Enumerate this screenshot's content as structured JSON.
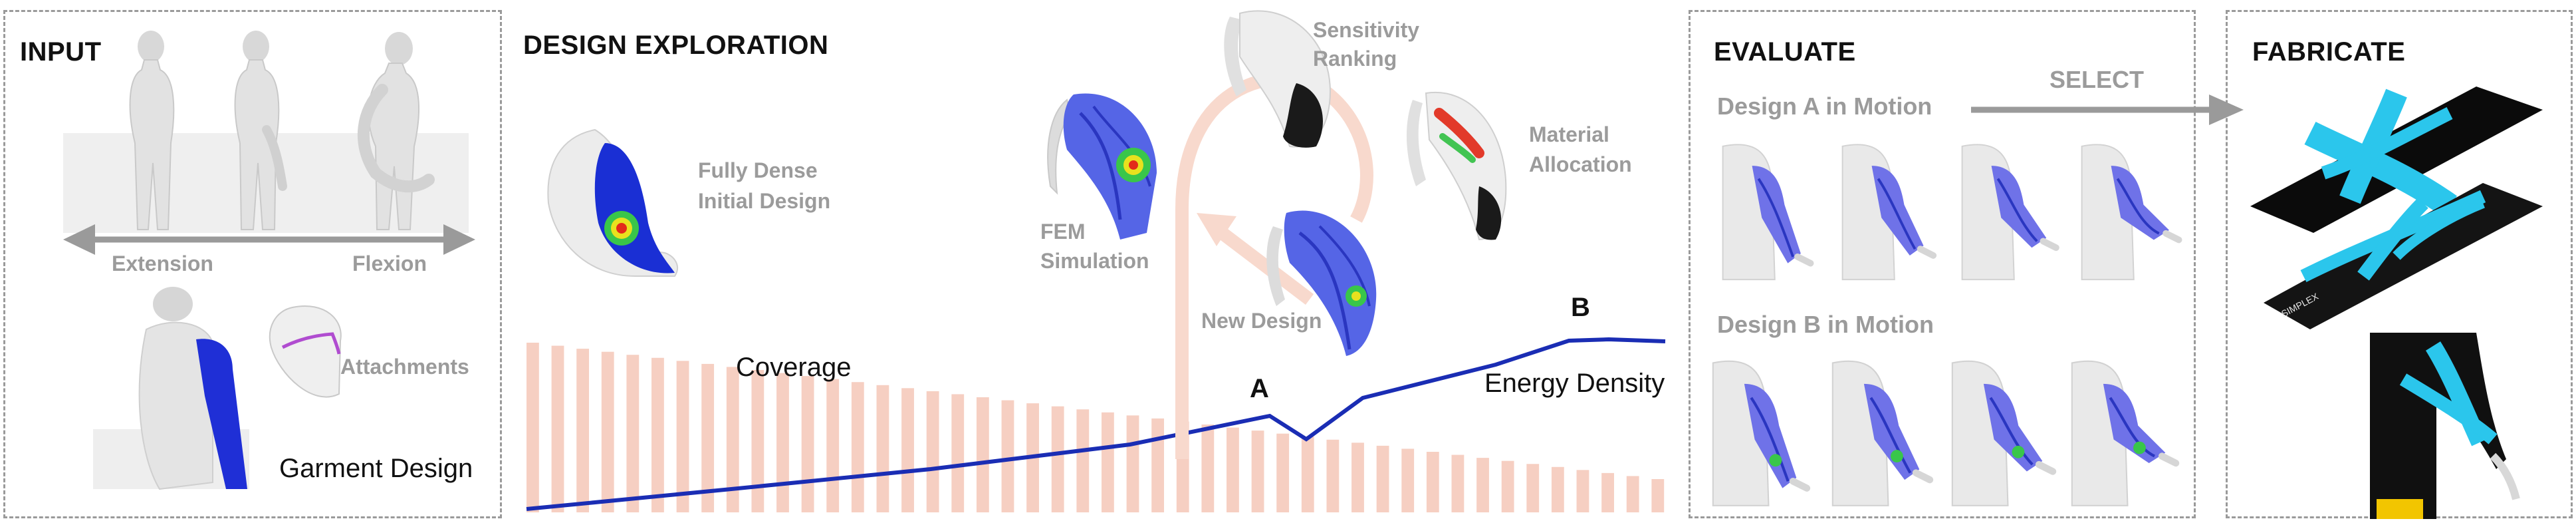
{
  "input": {
    "title": "INPUT",
    "extension_label": "Extension",
    "flexion_label": "Flexion",
    "attachments_label": "Attachments",
    "garment_label": "Garment Design"
  },
  "exploration": {
    "title": "DESIGN EXPLORATION",
    "fully_dense_line1": "Fully Dense",
    "fully_dense_line2": "Initial Design",
    "fem_line1": "FEM",
    "fem_line2": "Simulation",
    "sensitivity_line1": "Sensitivity",
    "sensitivity_line2": "Ranking",
    "material_line1": "Material",
    "material_line2": "Allocation",
    "new_design_label": "New Design",
    "coverage_label": "Coverage",
    "energy_label": "Energy Density",
    "point_a": "A",
    "point_b": "B"
  },
  "evaluate": {
    "title": "EVALUATE",
    "design_a_label": "Design A in Motion",
    "design_b_label": "Design B in Motion",
    "select_label": "SELECT"
  },
  "fabricate": {
    "title": "FABRICATE",
    "strip_text": "SIMPLEX"
  },
  "colors": {
    "energy_line": "#1a2db4",
    "coverage_bars": "#f6cfc2",
    "arm_blue": "#1f2fd6",
    "arm_violet": "#6f72e8",
    "tape_cyan": "#2bc6ec",
    "fabric_black": "#0b0b0b",
    "label_gray": "#9b9b9b"
  }
}
